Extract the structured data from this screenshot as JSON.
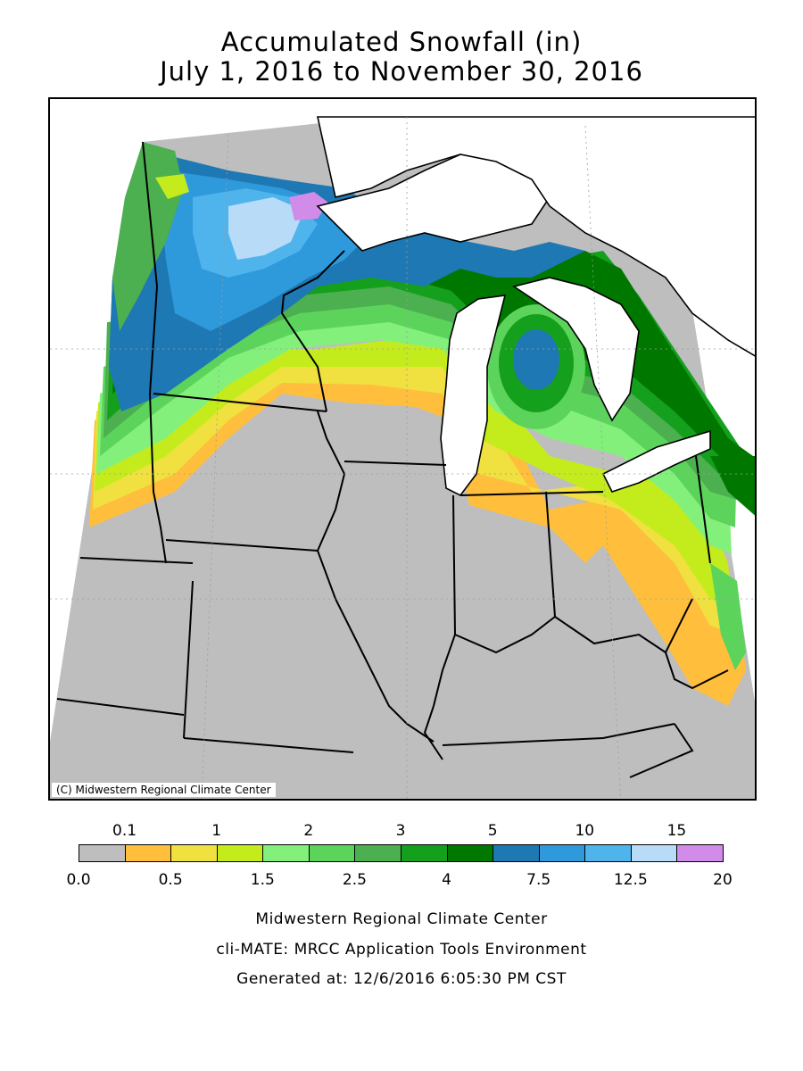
{
  "title": {
    "line1": "Accumulated Snowfall (in)",
    "line2": "July 1, 2016 to November 30, 2016"
  },
  "map": {
    "copyright": "(C) Midwestern Regional Climate Center"
  },
  "legend": {
    "upper_labels": [
      "0.1",
      "1",
      "2",
      "3",
      "5",
      "10",
      "15"
    ],
    "lower_labels": [
      "0.0",
      "0.5",
      "1.5",
      "2.5",
      "4",
      "7.5",
      "12.5",
      "20"
    ],
    "colors": [
      "#bebebe",
      "#ffbe3c",
      "#f0e040",
      "#c4ec1c",
      "#84f07c",
      "#5cd45c",
      "#4caf50",
      "#14a01c",
      "#007800",
      "#1e78b4",
      "#2e9adc",
      "#50b4ec",
      "#b8dcf8",
      "#d08ce8"
    ]
  },
  "footer": {
    "line1": "Midwestern Regional Climate Center",
    "line2": "cli-MATE: MRCC Application Tools Environment",
    "line3": "Generated at: 12/6/2016 6:05:30 PM CST"
  }
}
